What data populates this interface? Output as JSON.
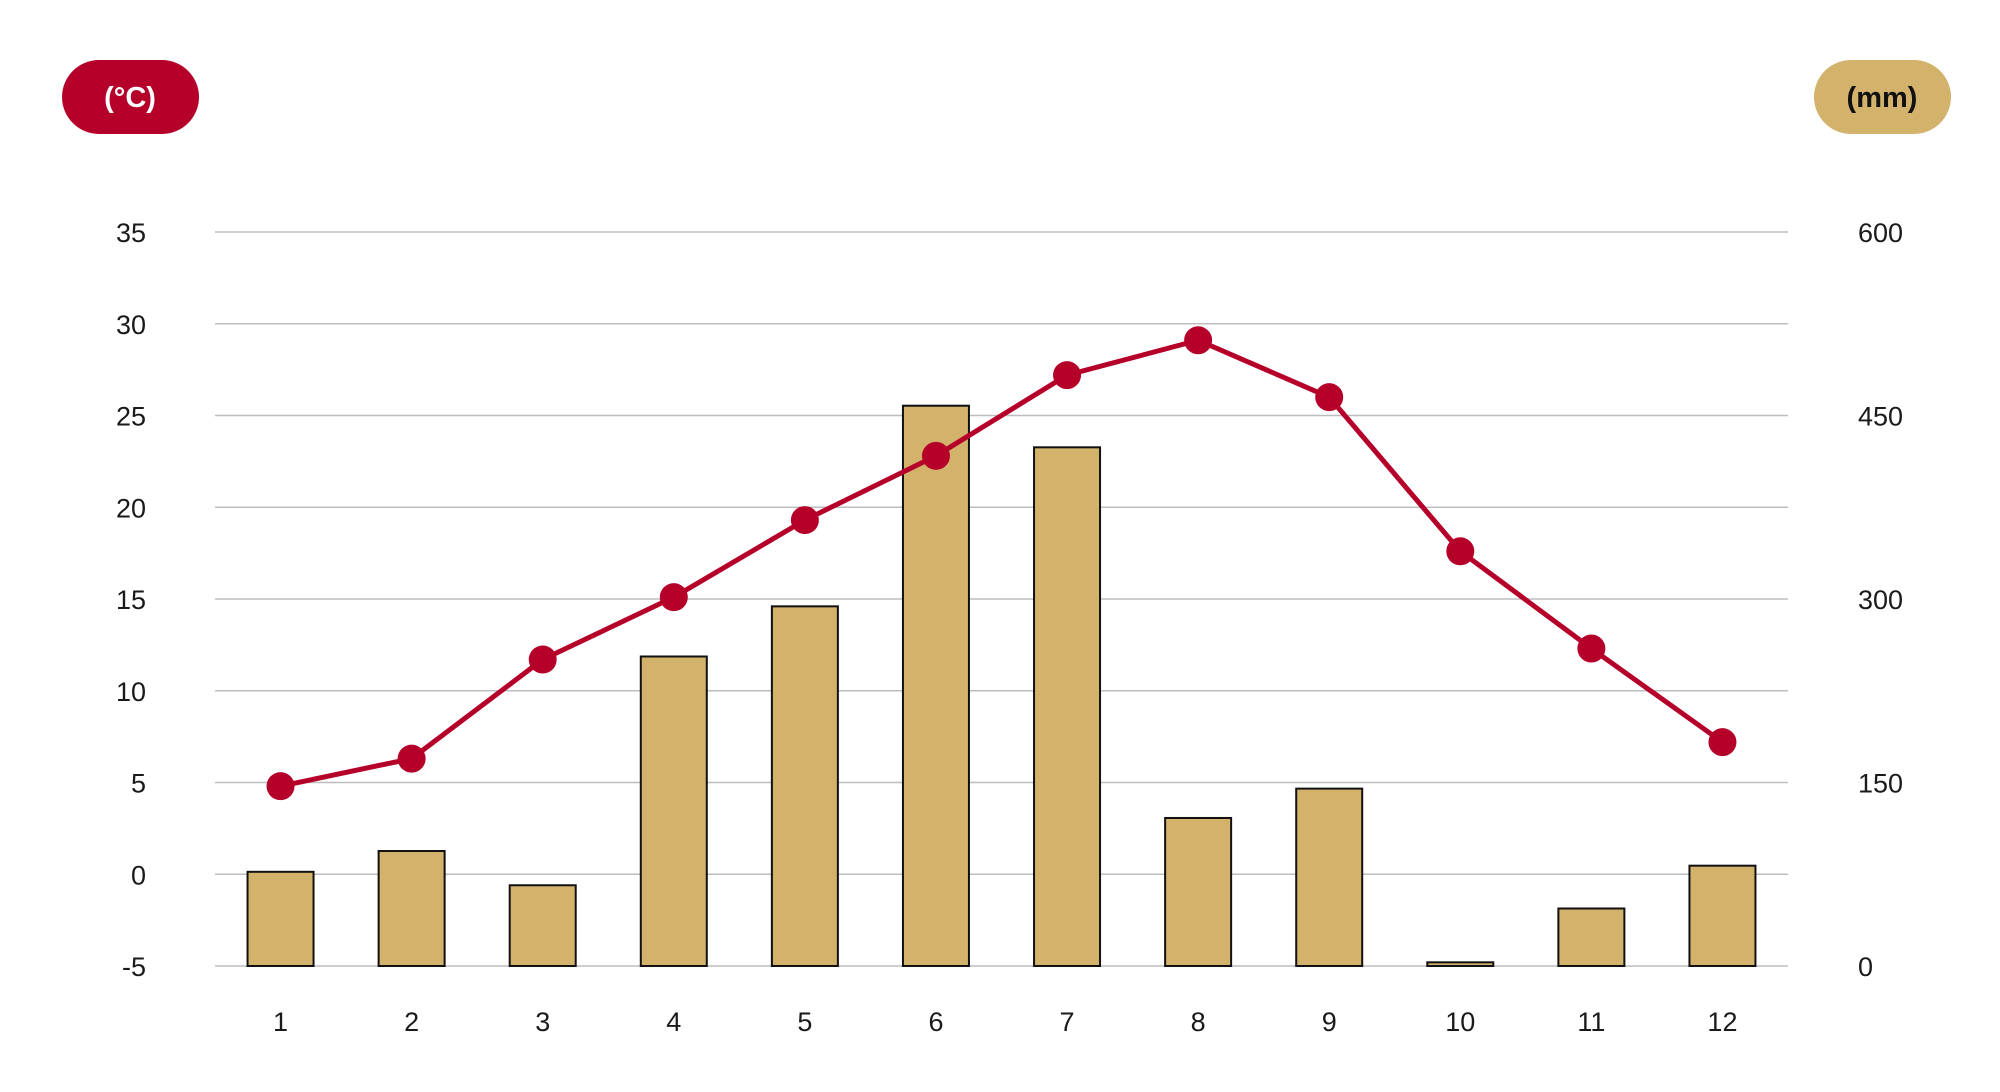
{
  "colors": {
    "temperature": "#b5002a",
    "precipitation": "#d3b26c",
    "bar_outline": "#111111",
    "grid": "#bdbdbd",
    "text": "#1a1a1a"
  },
  "left_unit_label": "(°C)",
  "right_unit_label": "(mm)",
  "chart_data": {
    "type": "bar+line",
    "title": "",
    "xlabel": "",
    "categories": [
      "1",
      "2",
      "3",
      "4",
      "5",
      "6",
      "7",
      "8",
      "9",
      "10",
      "11",
      "12"
    ],
    "grid": true,
    "left_axis": {
      "ylabel": "(°C)",
      "range": [
        -5,
        35
      ],
      "ticks": [
        -5,
        0,
        5,
        10,
        15,
        20,
        25,
        30,
        35
      ],
      "tick_labels": [
        "-5",
        "0",
        "5",
        "10",
        "15",
        "20",
        "25",
        "30",
        "35"
      ]
    },
    "right_axis": {
      "ylabel": "(mm)",
      "range": [
        0,
        600
      ],
      "ticks": [
        0,
        150,
        300,
        450,
        600
      ],
      "tick_labels": [
        "0",
        "150",
        "300",
        "450",
        "600"
      ]
    },
    "series": [
      {
        "type": "bar",
        "axis": "right",
        "values": [
          77,
          94,
          66,
          253,
          294,
          458,
          424,
          121,
          145,
          3,
          47,
          82
        ]
      },
      {
        "type": "line",
        "axis": "left",
        "values": [
          4.8,
          6.3,
          11.7,
          15.1,
          19.3,
          22.8,
          27.2,
          29.1,
          26.0,
          17.6,
          12.3,
          7.2
        ]
      }
    ]
  }
}
